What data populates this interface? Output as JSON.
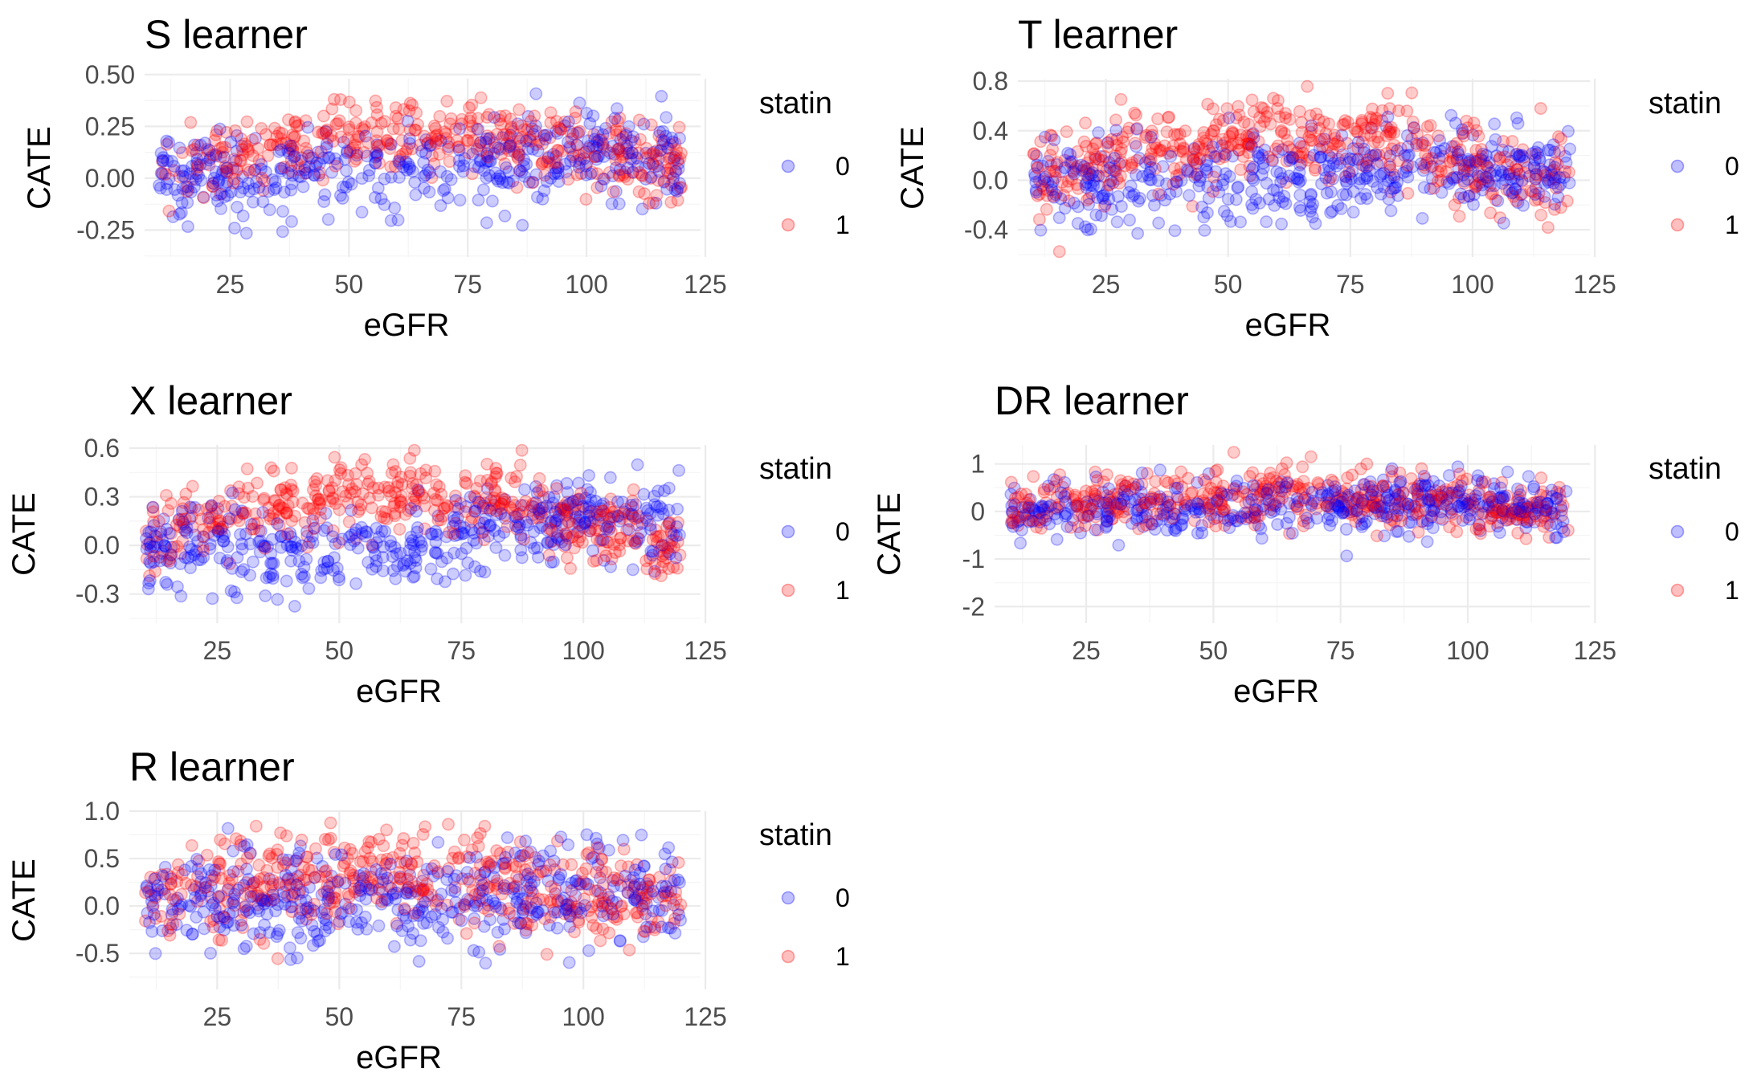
{
  "chart_data": [
    {
      "type": "scatter",
      "title": "S learner",
      "xlabel": "eGFR",
      "ylabel": "CATE",
      "xlim": [
        7,
        124
      ],
      "ylim": [
        -0.38,
        0.48
      ],
      "x_ticks": [
        25,
        50,
        75,
        100,
        125
      ],
      "x_tick_labels": [
        "25",
        "50",
        "75",
        "100",
        "125"
      ],
      "y_ticks": [
        -0.25,
        0.0,
        0.25,
        0.5
      ],
      "y_tick_labels": [
        "-0.25",
        "0.00",
        "0.25",
        "0.50"
      ],
      "grid": true,
      "legend": {
        "title": "statin",
        "placement": "right",
        "entries": [
          {
            "label": "0",
            "color": "#0000ff"
          },
          {
            "label": "1",
            "color": "#ff0000"
          }
        ]
      },
      "series": [
        {
          "group": "0",
          "color": "#0000ff",
          "trend": [
            [
              10,
              0.02
            ],
            [
              50,
              0.0
            ],
            [
              75,
              0.06
            ],
            [
              100,
              0.13
            ],
            [
              120,
              0.08
            ]
          ],
          "spread": 0.11,
          "x_range": [
            10,
            120
          ]
        },
        {
          "group": "1",
          "color": "#ff0000",
          "trend": [
            [
              10,
              0.03
            ],
            [
              35,
              0.16
            ],
            [
              55,
              0.2
            ],
            [
              75,
              0.22
            ],
            [
              100,
              0.13
            ],
            [
              120,
              0.05
            ]
          ],
          "spread": 0.09,
          "x_range": [
            10,
            120
          ]
        }
      ]
    },
    {
      "type": "scatter",
      "title": "T learner",
      "xlabel": "eGFR",
      "ylabel": "CATE",
      "xlim": [
        7,
        124
      ],
      "ylim": [
        -0.62,
        0.82
      ],
      "x_ticks": [
        25,
        50,
        75,
        100,
        125
      ],
      "x_tick_labels": [
        "25",
        "50",
        "75",
        "100",
        "125"
      ],
      "y_ticks": [
        -0.4,
        0.0,
        0.4,
        0.8
      ],
      "y_tick_labels": [
        "-0.4",
        "0.0",
        "0.4",
        "0.8"
      ],
      "grid": true,
      "legend": {
        "title": "statin",
        "placement": "right",
        "entries": [
          {
            "label": "0",
            "color": "#0000ff"
          },
          {
            "label": "1",
            "color": "#ff0000"
          }
        ]
      },
      "series": [
        {
          "group": "0",
          "color": "#0000ff",
          "trend": [
            [
              10,
              0.0
            ],
            [
              50,
              0.0
            ],
            [
              75,
              0.05
            ],
            [
              100,
              0.15
            ],
            [
              120,
              0.05
            ]
          ],
          "spread": 0.18,
          "x_range": [
            10,
            120
          ]
        },
        {
          "group": "1",
          "color": "#ff0000",
          "trend": [
            [
              10,
              0.0
            ],
            [
              35,
              0.25
            ],
            [
              60,
              0.35
            ],
            [
              80,
              0.32
            ],
            [
              100,
              0.1
            ],
            [
              120,
              0.0
            ]
          ],
          "spread": 0.17,
          "x_range": [
            10,
            120
          ]
        }
      ]
    },
    {
      "type": "scatter",
      "title": "X learner",
      "xlabel": "eGFR",
      "ylabel": "CATE",
      "xlim": [
        7,
        124
      ],
      "ylim": [
        -0.48,
        0.62
      ],
      "x_ticks": [
        25,
        50,
        75,
        100,
        125
      ],
      "x_tick_labels": [
        "25",
        "50",
        "75",
        "100",
        "125"
      ],
      "y_ticks": [
        -0.3,
        0.0,
        0.3,
        0.6
      ],
      "y_tick_labels": [
        "-0.3",
        "0.0",
        "0.3",
        "0.6"
      ],
      "grid": true,
      "legend": {
        "title": "statin",
        "placement": "right",
        "entries": [
          {
            "label": "0",
            "color": "#0000ff"
          },
          {
            "label": "1",
            "color": "#ff0000"
          }
        ]
      },
      "series": [
        {
          "group": "0",
          "color": "#0000ff",
          "trend": [
            [
              10,
              0.02
            ],
            [
              45,
              -0.05
            ],
            [
              75,
              0.05
            ],
            [
              100,
              0.2
            ],
            [
              120,
              0.1
            ]
          ],
          "spread": 0.13,
          "x_range": [
            10,
            120
          ]
        },
        {
          "group": "1",
          "color": "#ff0000",
          "trend": [
            [
              10,
              0.05
            ],
            [
              35,
              0.25
            ],
            [
              55,
              0.3
            ],
            [
              80,
              0.3
            ],
            [
              100,
              0.12
            ],
            [
              120,
              0.0
            ]
          ],
          "spread": 0.12,
          "x_range": [
            10,
            120
          ]
        }
      ]
    },
    {
      "type": "scatter",
      "title": "DR learner",
      "xlabel": "eGFR",
      "ylabel": "CATE",
      "xlim": [
        7,
        124
      ],
      "ylim": [
        -2.35,
        1.4
      ],
      "x_ticks": [
        25,
        50,
        75,
        100,
        125
      ],
      "x_tick_labels": [
        "25",
        "50",
        "75",
        "100",
        "125"
      ],
      "y_ticks": [
        -2,
        -1,
        0,
        1
      ],
      "y_tick_labels": [
        "-2",
        "-1",
        "0",
        "1"
      ],
      "grid": true,
      "legend": {
        "title": "statin",
        "placement": "right",
        "entries": [
          {
            "label": "0",
            "color": "#0000ff"
          },
          {
            "label": "1",
            "color": "#ff0000"
          }
        ]
      },
      "series": [
        {
          "group": "0",
          "color": "#0000ff",
          "trend": [
            [
              10,
              0.05
            ],
            [
              50,
              0.1
            ],
            [
              100,
              0.2
            ],
            [
              120,
              0.05
            ]
          ],
          "spread": 0.3,
          "x_range": [
            10,
            120
          ]
        },
        {
          "group": "1",
          "color": "#ff0000",
          "trend": [
            [
              10,
              0.05
            ],
            [
              40,
              0.3
            ],
            [
              75,
              0.35
            ],
            [
              100,
              0.15
            ],
            [
              120,
              0.0
            ]
          ],
          "spread": 0.3,
          "x_range": [
            10,
            120
          ]
        }
      ]
    },
    {
      "type": "scatter",
      "title": "R learner",
      "xlabel": "eGFR",
      "ylabel": "CATE",
      "xlim": [
        7,
        124
      ],
      "ylim": [
        -0.88,
        1.0
      ],
      "x_ticks": [
        25,
        50,
        75,
        100,
        125
      ],
      "x_tick_labels": [
        "25",
        "50",
        "75",
        "100",
        "125"
      ],
      "y_ticks": [
        -0.5,
        0.0,
        0.5,
        1.0
      ],
      "y_tick_labels": [
        "-0.5",
        "0.0",
        "0.5",
        "1.0"
      ],
      "grid": true,
      "legend": {
        "title": "statin",
        "placement": "right",
        "entries": [
          {
            "label": "0",
            "color": "#0000ff"
          },
          {
            "label": "1",
            "color": "#ff0000"
          }
        ]
      },
      "series": [
        {
          "group": "0",
          "color": "#0000ff",
          "trend": [
            [
              10,
              0.05
            ],
            [
              50,
              0.0
            ],
            [
              80,
              0.1
            ],
            [
              100,
              0.2
            ],
            [
              120,
              0.1
            ]
          ],
          "spread": 0.27,
          "x_range": [
            10,
            120
          ]
        },
        {
          "group": "1",
          "color": "#ff0000",
          "trend": [
            [
              10,
              0.1
            ],
            [
              40,
              0.3
            ],
            [
              60,
              0.35
            ],
            [
              80,
              0.3
            ],
            [
              100,
              0.15
            ],
            [
              120,
              0.0
            ]
          ],
          "spread": 0.25,
          "x_range": [
            10,
            120
          ]
        }
      ]
    }
  ]
}
